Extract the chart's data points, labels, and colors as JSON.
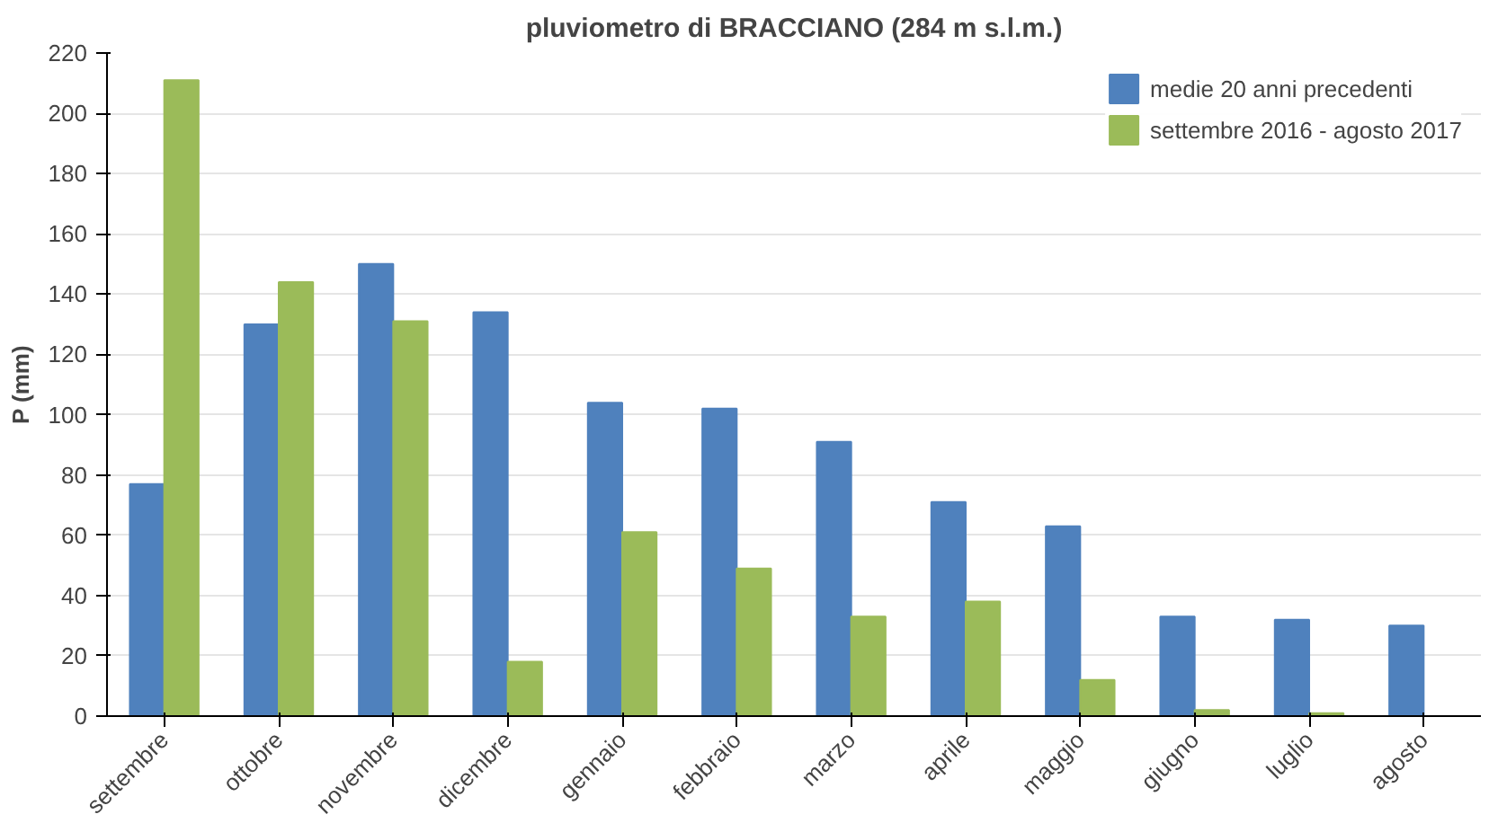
{
  "chart_data": {
    "type": "bar",
    "title": "pluviometro di BRACCIANO (284 m s.l.m.)",
    "ylabel": "P (mm)",
    "categories": [
      "settembre",
      "ottobre",
      "novembre",
      "dicembre",
      "gennaio",
      "febbraio",
      "marzo",
      "aprile",
      "maggio",
      "giugno",
      "luglio",
      "agosto"
    ],
    "series": [
      {
        "name": "medie 20 anni precedenti",
        "color": "#4f81bd",
        "values": [
          77,
          130,
          150,
          134,
          104,
          102,
          91,
          71,
          63,
          33,
          32,
          30
        ]
      },
      {
        "name": "settembre 2016 - agosto 2017",
        "color": "#9bbb59",
        "values": [
          211,
          144,
          131,
          18,
          61,
          49,
          33,
          38,
          12,
          2,
          1,
          null
        ]
      }
    ],
    "ylim": [
      0,
      220
    ],
    "yticks": [
      0,
      20,
      40,
      60,
      80,
      100,
      120,
      140,
      160,
      180,
      200,
      220
    ],
    "grid": "y",
    "legend": "top right"
  }
}
